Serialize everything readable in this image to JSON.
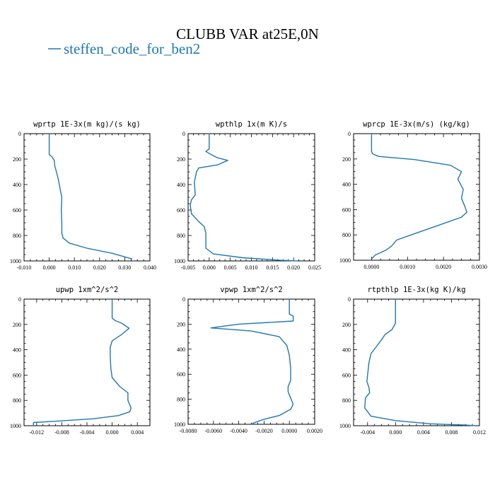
{
  "figure": {
    "title": "CLUBB VAR at25E,0N",
    "legend": [
      {
        "label": "steffen_code_for_ben2",
        "color": "#1f77b4"
      }
    ]
  },
  "chart_data": [
    {
      "type": "line",
      "title": "wprtp  1E-3x(m kg)/(s kg)",
      "xlim": [
        -0.01,
        0.04
      ],
      "ylim": [
        1000,
        0
      ],
      "xticks": [
        -0.01,
        0,
        0.01,
        0.02,
        0.03,
        0.04
      ],
      "xticklabels": [
        "-0.010",
        "0.000",
        "0.010",
        "0.020",
        "0.030",
        "0.040"
      ],
      "yticks": [
        0,
        200,
        400,
        600,
        800,
        1000
      ],
      "yticklabels": [
        "0",
        "200",
        "400",
        "600",
        "800",
        "1000"
      ],
      "series": [
        {
          "x": [
            0.0,
            0.0,
            0.0,
            0.0,
            0.001,
            0.002,
            0.0022,
            0.0035,
            0.0045,
            0.005,
            0.0048,
            0.005,
            0.005,
            0.0055,
            0.008,
            0.015,
            0.025,
            0.033
          ],
          "y": [
            0,
            100,
            150,
            165,
            180,
            210,
            250,
            350,
            450,
            500,
            600,
            700,
            780,
            820,
            860,
            900,
            940,
            985
          ]
        }
      ]
    },
    {
      "type": "line",
      "title": "wpthlp  1x(m K)/s",
      "xlim": [
        -0.005,
        0.025
      ],
      "ylim": [
        1000,
        0
      ],
      "xticks": [
        -0.005,
        0,
        0.005,
        0.01,
        0.015,
        0.02,
        0.025
      ],
      "xticklabels": [
        "-0.005",
        "0.000",
        "0.005",
        "0.010",
        "0.015",
        "0.020",
        "0.025"
      ],
      "yticks": [
        0,
        200,
        400,
        600,
        800,
        1000
      ],
      "yticklabels": [
        "0",
        "200",
        "400",
        "600",
        "800",
        "1000"
      ],
      "series": [
        {
          "x": [
            0.0,
            0.0,
            0.0,
            -0.0008,
            0.0005,
            0.002,
            0.0044,
            0.002,
            -0.0025,
            -0.003,
            -0.0035,
            -0.0033,
            -0.0042,
            -0.0045,
            -0.0042,
            -0.0025,
            -0.0012,
            -0.0008,
            -0.0008,
            0.001,
            0.008,
            0.017,
            0.021
          ],
          "y": [
            0,
            60,
            120,
            140,
            165,
            190,
            210,
            245,
            270,
            300,
            380,
            480,
            520,
            560,
            630,
            690,
            730,
            780,
            900,
            945,
            975,
            995,
            1000
          ]
        }
      ]
    },
    {
      "type": "line",
      "title": "wprcp  1E-3x(m/s) (kg/kg)",
      "xlim": [
        -0.0005,
        0.003
      ],
      "ylim": [
        1000,
        0
      ],
      "xticks": [
        0,
        0.001,
        0.002,
        0.003
      ],
      "xticklabels": [
        "0.0000",
        "0.0010",
        "0.0020",
        "0.0030"
      ],
      "yticks": [
        0,
        200,
        400,
        600,
        800,
        1000
      ],
      "yticklabels": [
        "0",
        "200",
        "400",
        "600",
        "800",
        "1000"
      ],
      "series": [
        {
          "x": [
            0.0,
            0.0,
            0.0,
            3e-05,
            0.0002,
            0.0012,
            0.0022,
            0.0025,
            0.0024,
            0.00255,
            0.0025,
            0.0026,
            0.00265,
            0.0025,
            0.0018,
            0.0011,
            0.0007,
            0.00055,
            0.0004,
            0.0001,
            0.0
          ],
          "y": [
            0,
            80,
            140,
            160,
            180,
            205,
            250,
            300,
            360,
            440,
            510,
            580,
            620,
            660,
            730,
            800,
            840,
            890,
            920,
            960,
            990
          ]
        }
      ]
    },
    {
      "type": "line",
      "title": "upwp  1xm^2/s^2",
      "xlim": [
        -0.014,
        0.006
      ],
      "ylim": [
        1000,
        0
      ],
      "xticks": [
        -0.012,
        -0.008,
        -0.004,
        0,
        0.004
      ],
      "xticklabels": [
        "-0.012",
        "-0.008",
        "-0.004",
        "0.000",
        "0.004"
      ],
      "yticks": [
        0,
        200,
        400,
        600,
        800,
        1000
      ],
      "yticklabels": [
        "0",
        "200",
        "400",
        "600",
        "800",
        "1000"
      ],
      "series": [
        {
          "x": [
            0.0,
            0.0,
            0.0,
            0.0005,
            0.0015,
            0.0027,
            0.0015,
            0.0,
            -0.0003,
            -0.0003,
            -0.0002,
            0.0,
            0.0012,
            0.0025,
            0.0025,
            0.003,
            0.0028,
            0.001,
            -0.003,
            -0.009,
            -0.0125,
            -0.0125
          ],
          "y": [
            0,
            100,
            150,
            170,
            190,
            230,
            280,
            330,
            380,
            450,
            550,
            620,
            690,
            740,
            800,
            860,
            890,
            920,
            945,
            965,
            975,
            1000
          ]
        }
      ]
    },
    {
      "type": "line",
      "title": "vpwp  1xm^2/s^2",
      "xlim": [
        -0.008,
        0.002
      ],
      "ylim": [
        1000,
        0
      ],
      "xticks": [
        -0.008,
        -0.006,
        -0.004,
        -0.002,
        0,
        0.002
      ],
      "xticklabels": [
        "-0.0080",
        "-0.0060",
        "-0.0040",
        "-0.0020",
        "0.0000",
        "0.0020"
      ],
      "yticks": [
        0,
        200,
        400,
        600,
        800,
        1000
      ],
      "yticklabels": [
        "0",
        "200",
        "400",
        "600",
        "800",
        "1000"
      ],
      "series": [
        {
          "x": [
            0.0,
            0.0,
            0.0,
            0.0003,
            0.0003,
            -0.004,
            -0.0062,
            -0.003,
            -0.0008,
            -0.0002,
            0.0,
            0.0001,
            0.0001,
            -0.0001,
            -0.0001,
            0.0001,
            0.0003,
            0.0001,
            -0.0008,
            -0.002,
            -0.0027,
            -0.003
          ],
          "y": [
            0,
            60,
            120,
            135,
            175,
            200,
            230,
            255,
            300,
            370,
            450,
            550,
            650,
            700,
            740,
            790,
            840,
            880,
            930,
            960,
            985,
            1000
          ]
        }
      ]
    },
    {
      "type": "line",
      "title": "rtpthlp  1E-3x(kg K)/kg",
      "xlim": [
        -0.006,
        0.012
      ],
      "ylim": [
        1000,
        0
      ],
      "xticks": [
        -0.004,
        0,
        0.004,
        0.008,
        0.012
      ],
      "xticklabels": [
        "-0.004",
        "0.000",
        "0.004",
        "0.008",
        "0.012"
      ],
      "yticks": [
        0,
        200,
        400,
        600,
        800,
        1000
      ],
      "yticklabels": [
        "0",
        "200",
        "400",
        "600",
        "800",
        "1000"
      ],
      "series": [
        {
          "x": [
            0.0,
            0.0,
            0.0,
            -0.0005,
            -0.0015,
            -0.002,
            -0.0028,
            -0.0035,
            -0.0038,
            -0.004,
            -0.0041,
            -0.0038,
            -0.0037,
            -0.0043,
            -0.0044,
            -0.0035,
            0.0,
            0.005,
            0.01,
            0.0115
          ],
          "y": [
            0,
            100,
            190,
            240,
            280,
            320,
            380,
            430,
            500,
            600,
            650,
            700,
            740,
            780,
            860,
            925,
            960,
            985,
            995,
            1000
          ]
        }
      ]
    }
  ]
}
